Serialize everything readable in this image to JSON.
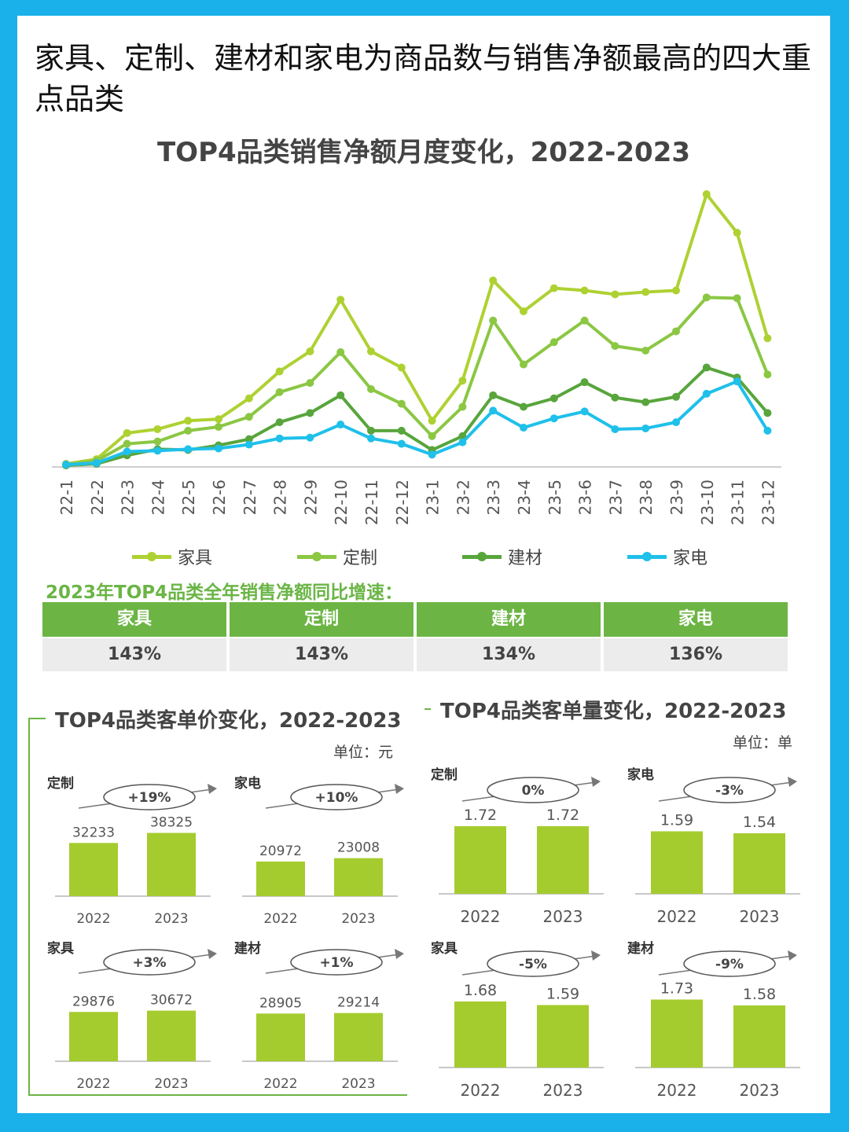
{
  "headline": "家具、定制、建材和家电为商品数与销售净额最高的四大重点品类",
  "colors": {
    "jiaju": "#aed132",
    "dingzhi": "#8bc743",
    "jiancai": "#58a53c",
    "jiadian": "#1fc0ea",
    "bar": "#a5cc2e",
    "header_green": "#6cb544",
    "frame": "#1ab0ea"
  },
  "chart_data": [
    {
      "type": "line",
      "title": "TOP4品类销售净额月度变化，2022-2023",
      "x": [
        "22-1",
        "22-2",
        "22-3",
        "22-4",
        "22-5",
        "22-6",
        "22-7",
        "22-8",
        "22-9",
        "22-10",
        "22-11",
        "22-12",
        "23-1",
        "23-2",
        "23-3",
        "23-4",
        "23-5",
        "23-6",
        "23-7",
        "23-8",
        "23-9",
        "23-10",
        "23-11",
        "23-12"
      ],
      "ylim": [
        0,
        360
      ],
      "grid": false,
      "legend": "bottom",
      "series": [
        {
          "name": "家具",
          "color": "#aed132",
          "values": [
            2,
            8,
            42,
            47,
            58,
            60,
            87,
            122,
            148,
            215,
            148,
            127,
            58,
            110,
            240,
            200,
            230,
            227,
            222,
            225,
            227,
            352,
            302,
            165
          ]
        },
        {
          "name": "定制",
          "color": "#8bc743",
          "values": [
            1,
            6,
            28,
            31,
            45,
            50,
            63,
            95,
            107,
            147,
            99,
            80,
            38,
            76,
            188,
            131,
            160,
            188,
            155,
            149,
            174,
            218,
            217,
            118
          ]
        },
        {
          "name": "建材",
          "color": "#58a53c",
          "values": [
            0,
            2,
            13,
            21,
            20,
            26,
            34,
            56,
            68,
            91,
            45,
            45,
            20,
            38,
            91,
            76,
            87,
            108,
            88,
            82,
            89,
            127,
            114,
            68
          ]
        },
        {
          "name": "家电",
          "color": "#1fc0ea",
          "values": [
            1,
            3,
            18,
            19,
            21,
            22,
            27,
            35,
            36,
            53,
            35,
            28,
            14,
            30,
            71,
            49,
            61,
            70,
            47,
            48,
            56,
            93,
            109,
            45
          ]
        }
      ]
    },
    {
      "type": "bar",
      "title": "TOP4品类客单价变化，2022-2023",
      "unit": "单位：元",
      "categories": [
        "2022",
        "2023"
      ],
      "series": [
        {
          "name": "定制",
          "change": "+19%",
          "values": [
            32233,
            38325
          ]
        },
        {
          "name": "家电",
          "change": "+10%",
          "values": [
            20972,
            23008
          ]
        },
        {
          "name": "家具",
          "change": "+3%",
          "values": [
            29876,
            30672
          ]
        },
        {
          "name": "建材",
          "change": "+1%",
          "values": [
            28905,
            29214
          ]
        }
      ]
    },
    {
      "type": "bar",
      "title": "TOP4品类客单量变化，2022-2023",
      "unit": "单位：单",
      "categories": [
        "2022",
        "2023"
      ],
      "series": [
        {
          "name": "定制",
          "change": "0%",
          "values": [
            1.72,
            1.72
          ]
        },
        {
          "name": "家电",
          "change": "-3%",
          "values": [
            1.59,
            1.54
          ]
        },
        {
          "name": "家具",
          "change": "-5%",
          "values": [
            1.68,
            1.59
          ]
        },
        {
          "name": "建材",
          "change": "-9%",
          "values": [
            1.73,
            1.58
          ]
        }
      ]
    }
  ],
  "growth": {
    "title": "2023年TOP4品类全年销售净额同比增速：",
    "headers": [
      "家具",
      "定制",
      "建材",
      "家电"
    ],
    "values": [
      "143%",
      "143%",
      "134%",
      "136%"
    ]
  }
}
